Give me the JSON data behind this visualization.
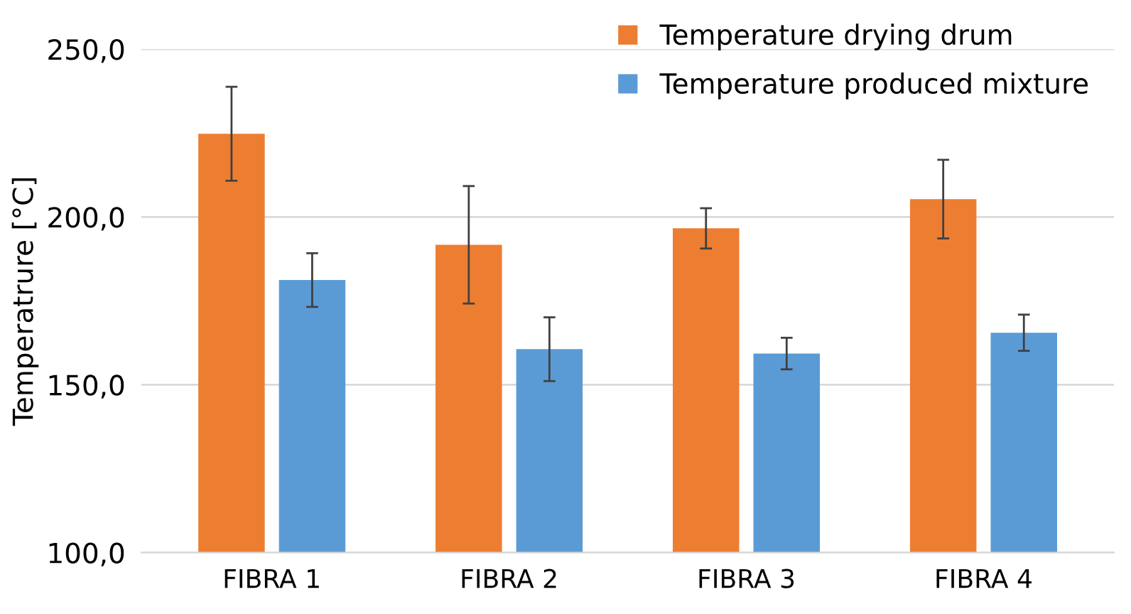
{
  "chart_data": {
    "type": "bar",
    "ylabel": "Temperatrure [°C]",
    "categories": [
      "FIBRA 1",
      "FIBRA 2",
      "FIBRA 3",
      "FIBRA 4"
    ],
    "series": [
      {
        "name": "Temperature drying drum",
        "color": "#ed7d31",
        "values": [
          224.8,
          191.7,
          196.6,
          205.3
        ],
        "errors": [
          14,
          17.5,
          6,
          11.7
        ]
      },
      {
        "name": "Temperature produced mixture",
        "color": "#5b9bd5",
        "values": [
          181.2,
          160.6,
          159.3,
          165.5
        ],
        "errors": [
          8,
          9.5,
          4.7,
          5.4
        ]
      }
    ],
    "ylim": [
      100,
      250
    ],
    "yticks": [
      {
        "value": 100,
        "label": "100,0"
      },
      {
        "value": 150,
        "label": "150,0"
      },
      {
        "value": 200,
        "label": "200,0"
      },
      {
        "value": 250,
        "label": "250,0"
      }
    ],
    "grid": "y",
    "legend": "top right"
  }
}
